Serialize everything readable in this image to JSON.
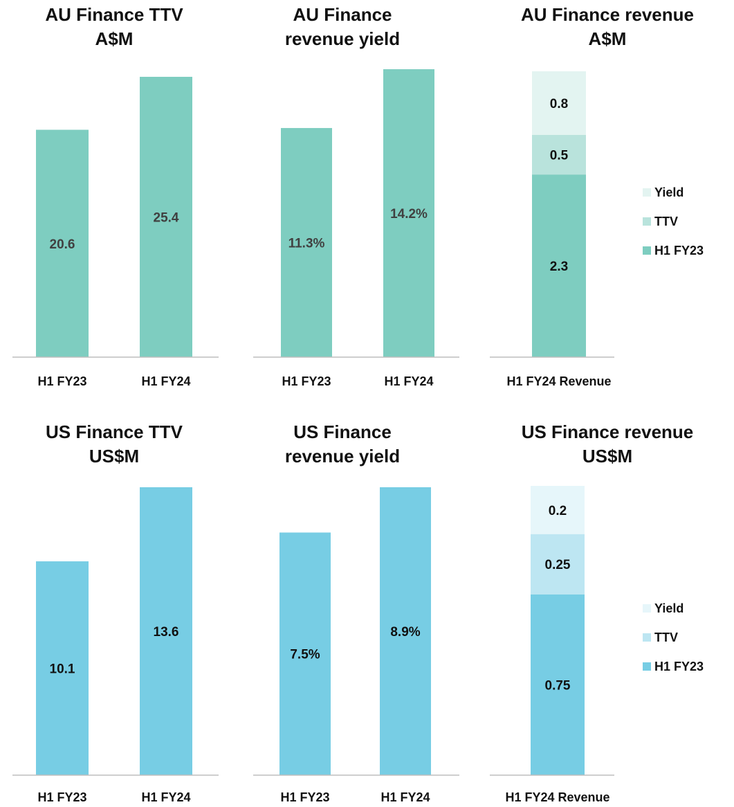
{
  "chart_data": [
    {
      "type": "bar",
      "title_lines": [
        "AU Finance TTV",
        "A$M"
      ],
      "categories": [
        "H1 FY23",
        "H1 FY24"
      ],
      "values": [
        20.6,
        25.4
      ],
      "labels": [
        "20.6",
        "25.4"
      ],
      "ylim": [
        0,
        25.9
      ],
      "color": "#7ecdc0",
      "label_color": "#404040"
    },
    {
      "type": "bar",
      "title_lines": [
        "AU Finance",
        "revenue yield"
      ],
      "categories": [
        "H1 FY23",
        "H1 FY24"
      ],
      "values": [
        11.3,
        14.2
      ],
      "labels": [
        "11.3%",
        "14.2%"
      ],
      "ylim": [
        0,
        14.2
      ],
      "color": "#7ecdc0",
      "label_color": "#404040"
    },
    {
      "type": "bar",
      "stacked": true,
      "title_lines": [
        "AU Finance revenue",
        "A$M"
      ],
      "categories": [
        "H1 FY24 Revenue"
      ],
      "series": [
        {
          "name": "H1 FY23",
          "values": [
            2.3
          ],
          "label": "2.3",
          "color": "#7ecdc0"
        },
        {
          "name": "TTV",
          "values": [
            0.5
          ],
          "label": "0.5",
          "color": "#b9e3dc"
        },
        {
          "name": "Yield",
          "values": [
            0.8
          ],
          "label": "0.8",
          "color": "#e3f4f1"
        }
      ],
      "ylim": [
        0,
        3.6
      ],
      "legend": "right",
      "legend_order": [
        "Yield",
        "TTV",
        "H1 FY23"
      ],
      "label_color": "#111111"
    },
    {
      "type": "bar",
      "title_lines": [
        "US Finance TTV",
        "US$M"
      ],
      "categories": [
        "H1 FY23",
        "H1 FY24"
      ],
      "values": [
        10.1,
        13.6
      ],
      "labels": [
        "10.1",
        "13.6"
      ],
      "ylim": [
        0,
        13.6
      ],
      "color": "#77cde4",
      "label_color": "#111111"
    },
    {
      "type": "bar",
      "title_lines": [
        "US Finance",
        "revenue yield"
      ],
      "categories": [
        "H1 FY23",
        "H1 FY24"
      ],
      "values": [
        7.5,
        8.9
      ],
      "labels": [
        "7.5%",
        "8.9%"
      ],
      "ylim": [
        0,
        8.9
      ],
      "color": "#77cde4",
      "label_color": "#111111"
    },
    {
      "type": "bar",
      "stacked": true,
      "title_lines": [
        "US Finance revenue",
        "US$M"
      ],
      "categories": [
        "H1 FY24 Revenue"
      ],
      "series": [
        {
          "name": "H1 FY23",
          "values": [
            0.75
          ],
          "label": "0.75",
          "color": "#77cde4"
        },
        {
          "name": "TTV",
          "values": [
            0.25
          ],
          "label": "0.25",
          "color": "#bde6f2"
        },
        {
          "name": "Yield",
          "values": [
            0.2
          ],
          "label": "0.2",
          "color": "#e6f6fa"
        }
      ],
      "ylim": [
        0,
        1.2
      ],
      "legend": "right",
      "legend_order": [
        "Yield",
        "TTV",
        "H1 FY23"
      ],
      "label_color": "#111111"
    }
  ]
}
